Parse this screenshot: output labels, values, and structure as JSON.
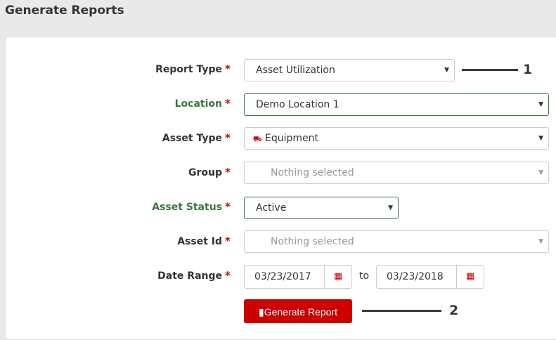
{
  "page": {
    "title": "Generate Reports"
  },
  "form": {
    "report_type": {
      "label": "Report Type",
      "value": "Asset Utilization"
    },
    "location": {
      "label": "Location",
      "value": "Demo Location 1"
    },
    "asset_type": {
      "label": "Asset Type",
      "value": "Equipment",
      "icon": "equipment-icon"
    },
    "group": {
      "label": "Group",
      "placeholder": "Nothing selected"
    },
    "asset_status": {
      "label": "Asset Status",
      "value": "Active"
    },
    "asset_id": {
      "label": "Asset Id",
      "placeholder": "Nothing selected"
    },
    "date_range": {
      "label": "Date Range",
      "from": "03/23/2017",
      "separator": "to",
      "to": "03/23/2018"
    },
    "required_mark": "*",
    "submit_label": "Generate Report"
  },
  "annotations": [
    "1",
    "2"
  ],
  "colors": {
    "accent": "#cc0000",
    "valid": "#3c763d"
  }
}
